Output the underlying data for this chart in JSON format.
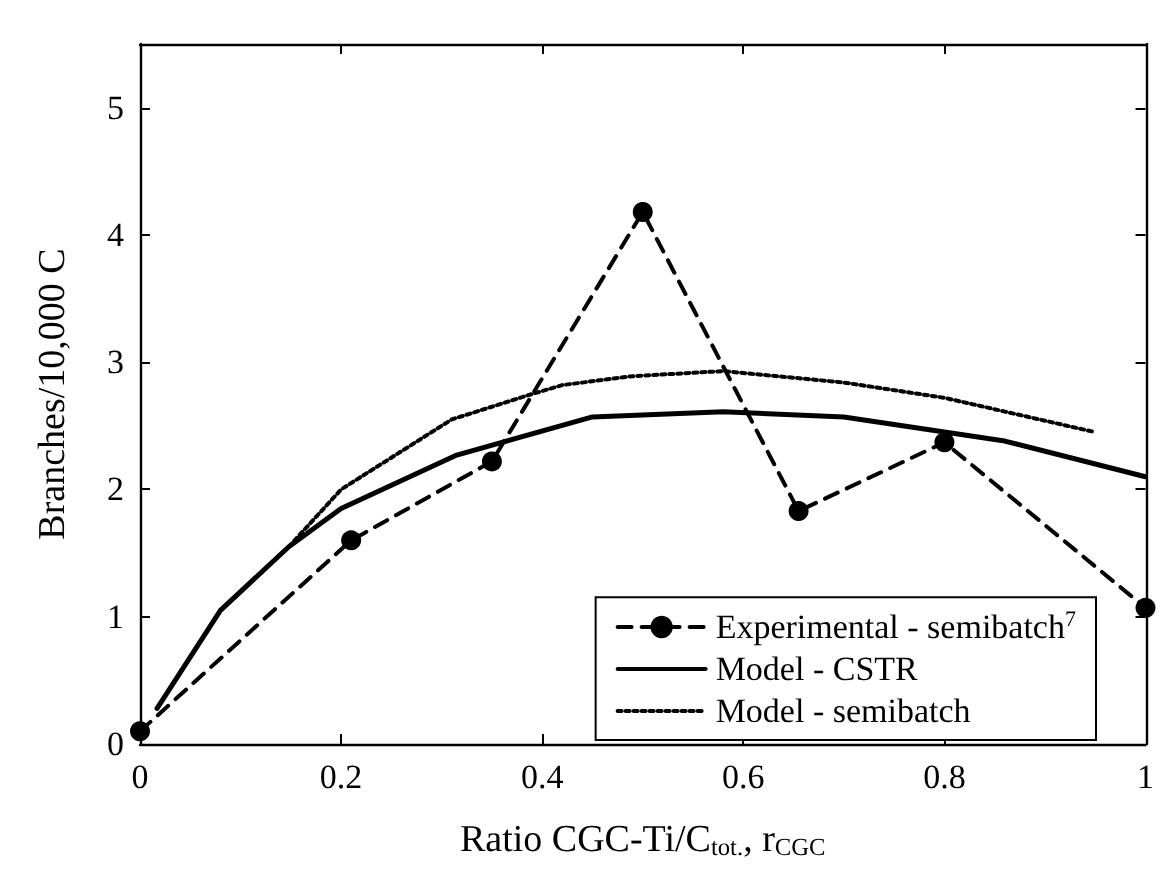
{
  "chart_data": {
    "type": "line",
    "xlabel": "Ratio CGC-Ti/C$_{tot.}$, r$_{CGC}$",
    "ylabel": "Branches/10,000 C",
    "xlim": [
      0,
      1
    ],
    "xticks": [
      0,
      0.2,
      0.4,
      0.6,
      0.8,
      1
    ],
    "ylim": [
      0,
      5.5
    ],
    "yticks": [
      0,
      1,
      2,
      3,
      4,
      5
    ],
    "grid": false,
    "legend": "bottom right",
    "series": [
      {
        "name": "Experimental - semibatch$^{7}$",
        "color": "#000000",
        "line_style": "dashed",
        "marker": "circle",
        "x": [
          0,
          0.21,
          0.35,
          0.5,
          0.655,
          0.8,
          1.0
        ],
        "values": [
          0.1,
          1.6,
          2.22,
          4.18,
          1.83,
          2.37,
          1.07
        ]
      },
      {
        "name": "Model - CSTR",
        "color": "#000000",
        "line_style": "solid",
        "marker": "none",
        "x": [
          0.017,
          0.08,
          0.148,
          0.2,
          0.315,
          0.45,
          0.58,
          0.7,
          0.86,
          1.0
        ],
        "values": [
          0.28,
          1.05,
          1.55,
          1.85,
          2.27,
          2.57,
          2.61,
          2.57,
          2.38,
          2.1
        ]
      },
      {
        "name": "Model - semibatch",
        "color": "#000000",
        "line_style": "dotted",
        "marker": "none",
        "x": [
          0.148,
          0.2,
          0.31,
          0.39,
          0.42,
          0.49,
          0.58,
          0.7,
          0.8,
          0.95
        ],
        "values": [
          1.55,
          2.0,
          2.55,
          2.75,
          2.82,
          2.89,
          2.93,
          2.84,
          2.72,
          2.45
        ]
      }
    ]
  }
}
